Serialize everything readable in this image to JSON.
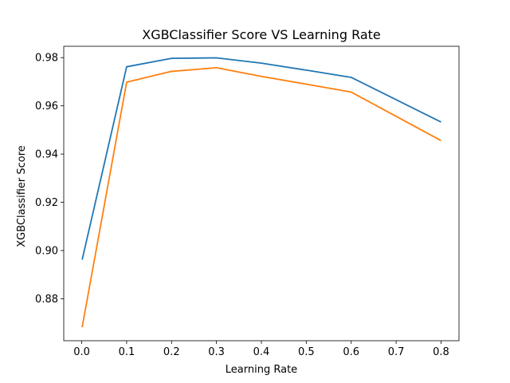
{
  "chart_data": {
    "type": "line",
    "title": "XGBClassifier Score VS Learning Rate",
    "xlabel": "Learning Rate",
    "ylabel": "XGBClassifier Score",
    "x": [
      0.001,
      0.1,
      0.2,
      0.3,
      0.4,
      0.5,
      0.6,
      0.8
    ],
    "series": [
      {
        "values": [
          0.8962,
          0.9762,
          0.9797,
          0.9799,
          0.9777,
          0.9748,
          0.9718,
          0.9533
        ],
        "color": "#1f77b4"
      },
      {
        "values": [
          0.8682,
          0.9698,
          0.9743,
          0.9758,
          0.9722,
          0.969,
          0.9657,
          0.9456
        ],
        "color": "#ff7f0e"
      }
    ],
    "xlim": [
      -0.04,
      0.84
    ],
    "ylim": [
      0.8626,
      0.9847
    ],
    "xticks": [
      "0.0",
      "0.1",
      "0.2",
      "0.3",
      "0.4",
      "0.5",
      "0.6",
      "0.7",
      "0.8"
    ],
    "yticks": [
      "0.88",
      "0.90",
      "0.92",
      "0.94",
      "0.96",
      "0.98"
    ],
    "grid": false,
    "legend": "none"
  }
}
